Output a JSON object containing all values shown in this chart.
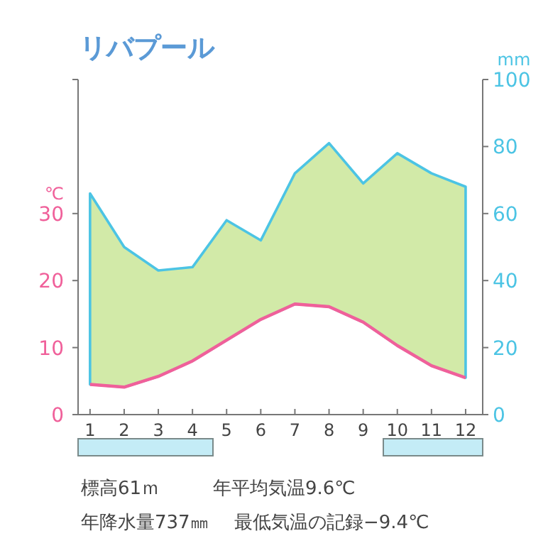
{
  "chart_data": {
    "type": "line",
    "title": "リバプール",
    "ylabel": "℃",
    "y2label": "mm",
    "x": [
      1,
      2,
      3,
      4,
      5,
      6,
      7,
      8,
      9,
      10,
      11,
      12
    ],
    "series": [
      {
        "color": "#f0609a",
        "values": [
          4.5,
          4.1,
          5.7,
          8.0,
          11.1,
          14.2,
          16.5,
          16.1,
          13.8,
          10.3,
          7.3,
          5.5
        ]
      },
      {
        "type": "area",
        "axis": "y2",
        "color": "#4cc4e4",
        "values": [
          66,
          50,
          43,
          44,
          58,
          52,
          72,
          81,
          69,
          78,
          72,
          68
        ]
      }
    ],
    "xlim": [
      0.65,
      12.5
    ],
    "xticks": [
      1,
      2,
      3,
      4,
      5,
      6,
      7,
      8,
      9,
      10,
      11,
      12
    ],
    "ylim": [
      0,
      50
    ],
    "yticks": [
      0,
      10,
      20,
      30,
      {
        "value": 50,
        "label": null
      }
    ],
    "y2lim": [
      0,
      100
    ],
    "y2ticks": [
      0,
      20,
      40,
      60,
      80,
      100
    ],
    "annotations": [
      "標高61ｍ",
      "年平均気温9.6℃",
      "年降水量737㎜",
      "最低気温の記録−9.4℃"
    ]
  }
}
